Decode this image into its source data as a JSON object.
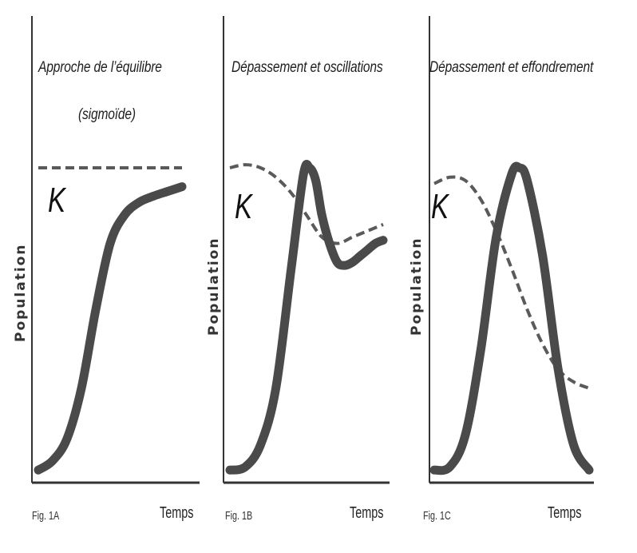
{
  "chart_data": [
    {
      "type": "line",
      "title": "Approche de l'équilibre (sigmoïde)",
      "title_lines": [
        "Approche de l’équilibre",
        "(sigmoïde)"
      ],
      "ylabel": "Population",
      "xlabel": "Temps",
      "figure_label": "Fig. 1A",
      "capacity_label": "K",
      "colors": {
        "population": "#4a4a4a",
        "capacity": "#5a5a5a",
        "axis": "#333333"
      },
      "series": [
        {
          "role": "population",
          "style": "solid",
          "x": [
            0,
            0.1,
            0.2,
            0.3,
            0.4,
            0.5,
            0.6,
            0.7,
            0.8,
            0.9,
            1.0
          ],
          "y": [
            0.04,
            0.07,
            0.14,
            0.3,
            0.55,
            0.76,
            0.85,
            0.89,
            0.91,
            0.925,
            0.94
          ]
        },
        {
          "role": "capacity",
          "style": "dashed",
          "x": [
            0,
            1.0
          ],
          "y": [
            1.0,
            1.0
          ]
        }
      ]
    },
    {
      "type": "line",
      "title": "Dépassement et oscillations",
      "title_lines": [
        "Dépassement et oscillations"
      ],
      "ylabel": "Population",
      "xlabel": "Temps",
      "figure_label": "Fig. 1B",
      "capacity_label": "K",
      "colors": {
        "population": "#4a4a4a",
        "capacity": "#5a5a5a",
        "axis": "#333333"
      },
      "series": [
        {
          "role": "population",
          "style": "solid",
          "x": [
            0,
            0.1,
            0.2,
            0.3,
            0.4,
            0.48,
            0.52,
            0.56,
            0.6,
            0.65,
            0.7,
            0.75,
            0.8,
            0.85,
            0.9,
            0.95,
            1.0
          ],
          "y": [
            0.04,
            0.05,
            0.12,
            0.3,
            0.68,
            0.98,
            1.0,
            0.96,
            0.85,
            0.76,
            0.7,
            0.69,
            0.7,
            0.72,
            0.74,
            0.76,
            0.77
          ]
        },
        {
          "role": "capacity",
          "style": "dashed",
          "x": [
            0,
            0.1,
            0.2,
            0.3,
            0.4,
            0.5,
            0.6,
            0.7,
            0.8,
            0.9,
            1.0
          ],
          "y": [
            1.0,
            1.01,
            1.0,
            0.97,
            0.92,
            0.85,
            0.78,
            0.76,
            0.78,
            0.8,
            0.82
          ]
        }
      ]
    },
    {
      "type": "line",
      "title": "Dépassement et effondrement",
      "title_lines": [
        "Dépassement et effondrement"
      ],
      "ylabel": "Population",
      "xlabel": "Temps",
      "figure_label": "Fig. 1C",
      "capacity_label": "K",
      "colors": {
        "population": "#4a4a4a",
        "capacity": "#5a5a5a",
        "axis": "#333333"
      },
      "series": [
        {
          "role": "population",
          "style": "solid",
          "x": [
            0,
            0.1,
            0.2,
            0.3,
            0.4,
            0.5,
            0.55,
            0.6,
            0.7,
            0.8,
            0.9,
            1.0
          ],
          "y": [
            0.04,
            0.05,
            0.15,
            0.42,
            0.78,
            0.98,
            1.0,
            0.96,
            0.72,
            0.36,
            0.12,
            0.04
          ]
        },
        {
          "role": "capacity",
          "style": "dashed",
          "x": [
            0,
            0.1,
            0.2,
            0.3,
            0.4,
            0.5,
            0.6,
            0.7,
            0.8,
            0.9,
            1.0
          ],
          "y": [
            0.95,
            0.97,
            0.96,
            0.9,
            0.8,
            0.68,
            0.55,
            0.44,
            0.36,
            0.32,
            0.3
          ]
        }
      ]
    }
  ]
}
